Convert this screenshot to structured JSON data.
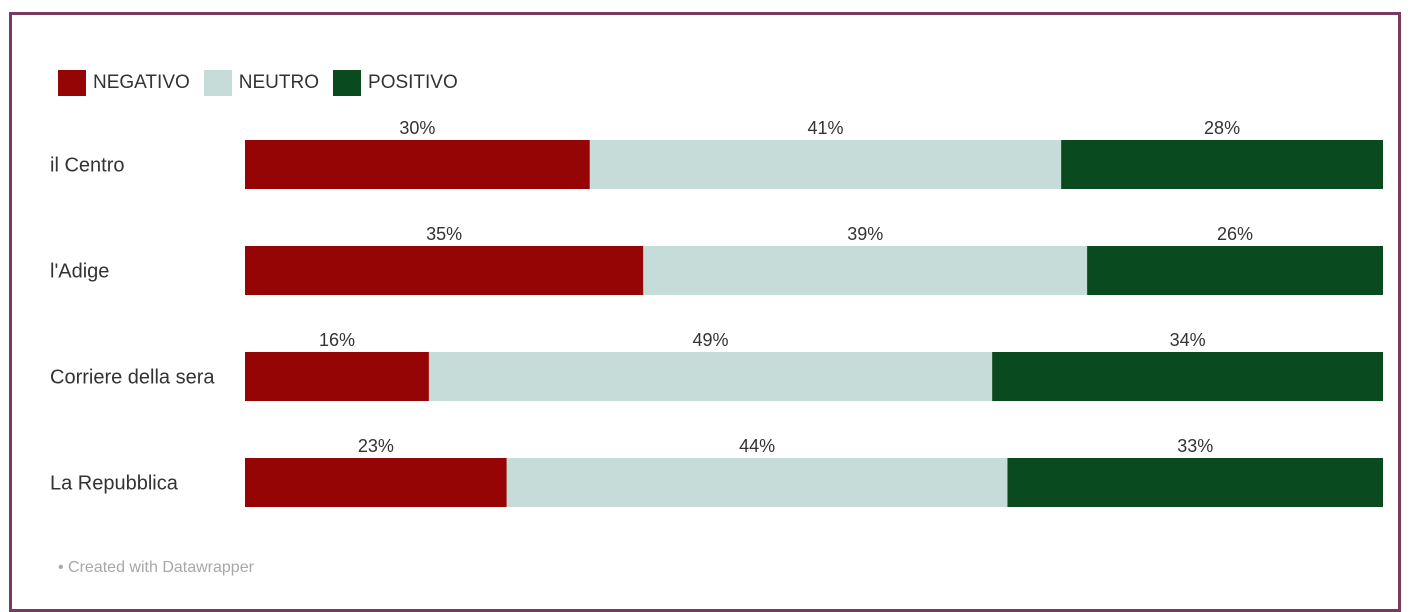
{
  "chart_data": {
    "type": "bar",
    "orientation": "horizontal",
    "stacked": true,
    "categories": [
      "il Centro",
      "l'Adige",
      "Corriere della sera",
      "La Repubblica"
    ],
    "series": [
      {
        "name": "NEGATIVO",
        "color": "#950505",
        "values": [
          30,
          35,
          16,
          23
        ],
        "labels": [
          "30%",
          "35%",
          "16%",
          "23%"
        ]
      },
      {
        "name": "NEUTRO",
        "color": "#c6dcd8",
        "values": [
          41,
          39,
          49,
          44
        ],
        "labels": [
          "41%",
          "39%",
          "49%",
          "44%"
        ]
      },
      {
        "name": "POSITIVO",
        "color": "#0a4a1f",
        "values": [
          28,
          26,
          34,
          33
        ],
        "labels": [
          "28%",
          "26%",
          "34%",
          "33%"
        ]
      }
    ],
    "legend_position": "top-left",
    "grid": false
  },
  "footer": "• Created with Datawrapper",
  "colors": {
    "border": "#7a3a5f"
  }
}
